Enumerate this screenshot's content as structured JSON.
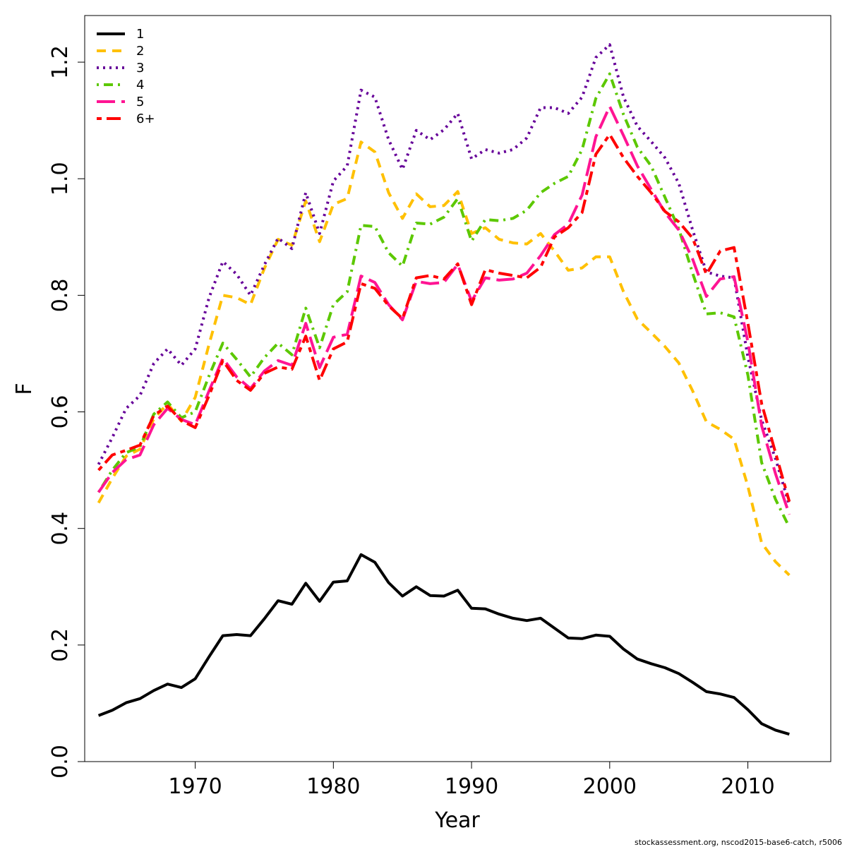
{
  "chart_data": {
    "type": "line",
    "xlabel": "Year",
    "ylabel": "F",
    "xlim": [
      1962,
      2016
    ],
    "ylim": [
      0,
      1.28
    ],
    "x_ticks": [
      1970,
      1980,
      1990,
      2000,
      2010
    ],
    "x_tick_labels": [
      "1970",
      "1980",
      "1990",
      "2000",
      "2010"
    ],
    "y_ticks": [
      0.0,
      0.2,
      0.4,
      0.6,
      0.8,
      1.0,
      1.2
    ],
    "y_tick_labels": [
      "0.0",
      "0.2",
      "0.4",
      "0.6",
      "0.8",
      "1.0",
      "1.2"
    ],
    "grid": false,
    "legend_position": "top-left",
    "x": [
      1963,
      1964,
      1965,
      1966,
      1967,
      1968,
      1969,
      1970,
      1971,
      1972,
      1973,
      1974,
      1975,
      1976,
      1977,
      1978,
      1979,
      1980,
      1981,
      1982,
      1983,
      1984,
      1985,
      1986,
      1987,
      1988,
      1989,
      1990,
      1991,
      1992,
      1993,
      1994,
      1995,
      1996,
      1997,
      1998,
      1999,
      2000,
      2001,
      2002,
      2003,
      2004,
      2005,
      2006,
      2007,
      2008,
      2009,
      2010,
      2011,
      2012,
      2013
    ],
    "series": [
      {
        "name": "1",
        "color": "#000000",
        "dash": "solid",
        "values": [
          0.079,
          0.088,
          0.101,
          0.108,
          0.122,
          0.133,
          0.127,
          0.142,
          0.18,
          0.216,
          0.218,
          0.216,
          0.245,
          0.276,
          0.27,
          0.306,
          0.275,
          0.308,
          0.31,
          0.355,
          0.342,
          0.307,
          0.284,
          0.3,
          0.285,
          0.284,
          0.294,
          0.263,
          0.262,
          0.253,
          0.246,
          0.242,
          0.246,
          0.229,
          0.212,
          0.211,
          0.217,
          0.215,
          0.193,
          0.176,
          0.168,
          0.161,
          0.151,
          0.136,
          0.12,
          0.116,
          0.11,
          0.089,
          0.065,
          0.054,
          0.047
        ]
      },
      {
        "name": "2",
        "color": "#ffc000",
        "dash": "dashed",
        "values": [
          0.444,
          0.486,
          0.524,
          0.536,
          0.588,
          0.614,
          0.584,
          0.625,
          0.716,
          0.8,
          0.796,
          0.784,
          0.846,
          0.896,
          0.886,
          0.962,
          0.892,
          0.956,
          0.966,
          1.063,
          1.046,
          0.976,
          0.932,
          0.974,
          0.952,
          0.954,
          0.978,
          0.906,
          0.916,
          0.896,
          0.89,
          0.888,
          0.906,
          0.876,
          0.843,
          0.847,
          0.866,
          0.866,
          0.806,
          0.759,
          0.736,
          0.712,
          0.684,
          0.636,
          0.583,
          0.57,
          0.553,
          0.472,
          0.375,
          0.343,
          0.32
        ]
      },
      {
        "name": "3",
        "color": "#660099",
        "dash": "dotted",
        "values": [
          0.51,
          0.556,
          0.606,
          0.628,
          0.683,
          0.708,
          0.68,
          0.708,
          0.796,
          0.858,
          0.836,
          0.8,
          0.852,
          0.898,
          0.88,
          0.976,
          0.906,
          0.996,
          1.022,
          1.152,
          1.14,
          1.067,
          1.016,
          1.083,
          1.067,
          1.084,
          1.112,
          1.034,
          1.05,
          1.044,
          1.05,
          1.07,
          1.122,
          1.122,
          1.112,
          1.14,
          1.208,
          1.23,
          1.14,
          1.09,
          1.064,
          1.036,
          0.992,
          0.912,
          0.84,
          0.833,
          0.83,
          0.694,
          0.586,
          0.52,
          0.44
        ]
      },
      {
        "name": "4",
        "color": "#5cc800",
        "dash": "dotdash",
        "values": [
          0.462,
          0.5,
          0.53,
          0.54,
          0.596,
          0.617,
          0.59,
          0.6,
          0.662,
          0.718,
          0.69,
          0.66,
          0.693,
          0.718,
          0.698,
          0.778,
          0.71,
          0.784,
          0.806,
          0.92,
          0.918,
          0.873,
          0.85,
          0.924,
          0.922,
          0.934,
          0.966,
          0.893,
          0.93,
          0.928,
          0.932,
          0.946,
          0.976,
          0.992,
          1.004,
          1.05,
          1.138,
          1.18,
          1.11,
          1.054,
          1.022,
          0.968,
          0.914,
          0.838,
          0.768,
          0.77,
          0.763,
          0.663,
          0.513,
          0.45,
          0.402
        ]
      },
      {
        "name": "5",
        "color": "#ff1493",
        "dash": "longdash",
        "values": [
          0.462,
          0.496,
          0.518,
          0.526,
          0.578,
          0.606,
          0.587,
          0.578,
          0.636,
          0.692,
          0.66,
          0.64,
          0.67,
          0.688,
          0.68,
          0.752,
          0.676,
          0.728,
          0.733,
          0.833,
          0.822,
          0.784,
          0.758,
          0.824,
          0.82,
          0.822,
          0.853,
          0.79,
          0.83,
          0.826,
          0.828,
          0.838,
          0.868,
          0.904,
          0.922,
          0.972,
          1.072,
          1.124,
          1.074,
          1.022,
          0.982,
          0.942,
          0.912,
          0.862,
          0.798,
          0.828,
          0.832,
          0.72,
          0.576,
          0.494,
          0.424
        ]
      },
      {
        "name": "6+",
        "color": "#ff0000",
        "dash": "twodash",
        "values": [
          0.5,
          0.526,
          0.534,
          0.543,
          0.594,
          0.61,
          0.585,
          0.573,
          0.628,
          0.688,
          0.654,
          0.637,
          0.666,
          0.677,
          0.673,
          0.73,
          0.654,
          0.708,
          0.72,
          0.82,
          0.812,
          0.782,
          0.76,
          0.83,
          0.834,
          0.828,
          0.854,
          0.784,
          0.844,
          0.838,
          0.834,
          0.83,
          0.848,
          0.9,
          0.916,
          0.942,
          1.042,
          1.076,
          1.036,
          1.004,
          0.976,
          0.944,
          0.926,
          0.898,
          0.836,
          0.876,
          0.882,
          0.752,
          0.614,
          0.53,
          0.446
        ]
      }
    ]
  },
  "credit": "stockassessment.org, nscod2015-base6-catch, r5006"
}
